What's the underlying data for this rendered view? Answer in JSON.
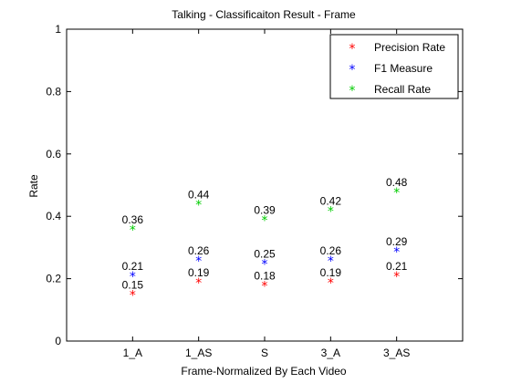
{
  "chart_data": {
    "type": "scatter",
    "title": "Talking - Classificaiton Result - Frame",
    "xlabel": "Frame-Normalized By Each Video",
    "ylabel": "Rate",
    "categories": [
      "1_A",
      "1_AS",
      "S",
      "3_A",
      "3_AS"
    ],
    "ylim": [
      0,
      1
    ],
    "yticks": [
      "0",
      "0.2",
      "0.4",
      "0.6",
      "0.8",
      "1"
    ],
    "grid": false,
    "legend_position": "top-right",
    "marker": "*",
    "series": [
      {
        "name": "Precision Rate",
        "color": "#ff0000",
        "values": [
          0.15,
          0.19,
          0.18,
          0.19,
          0.21
        ],
        "labels": [
          "0.15",
          "0.19",
          "0.18",
          "0.19",
          "0.21"
        ]
      },
      {
        "name": "F1 Measure",
        "color": "#0000ff",
        "values": [
          0.21,
          0.26,
          0.25,
          0.26,
          0.29
        ],
        "labels": [
          "0.21",
          "0.26",
          "0.25",
          "0.26",
          "0.29"
        ]
      },
      {
        "name": "Recall Rate",
        "color": "#00cc00",
        "values": [
          0.36,
          0.44,
          0.39,
          0.42,
          0.48
        ],
        "labels": [
          "0.36",
          "0.44",
          "0.39",
          "0.42",
          "0.48"
        ]
      }
    ]
  }
}
